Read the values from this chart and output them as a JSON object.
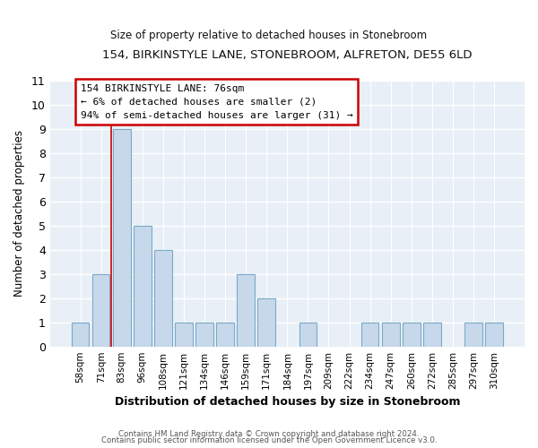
{
  "title": "154, BIRKINSTYLE LANE, STONEBROOM, ALFRETON, DE55 6LD",
  "subtitle": "Size of property relative to detached houses in Stonebroom",
  "xlabel": "Distribution of detached houses by size in Stonebroom",
  "ylabel": "Number of detached properties",
  "categories": [
    "58sqm",
    "71sqm",
    "83sqm",
    "96sqm",
    "108sqm",
    "121sqm",
    "134sqm",
    "146sqm",
    "159sqm",
    "171sqm",
    "184sqm",
    "197sqm",
    "209sqm",
    "222sqm",
    "234sqm",
    "247sqm",
    "260sqm",
    "272sqm",
    "285sqm",
    "297sqm",
    "310sqm"
  ],
  "values": [
    1,
    3,
    9,
    5,
    4,
    1,
    1,
    1,
    3,
    2,
    0,
    1,
    0,
    0,
    1,
    1,
    1,
    1,
    0,
    1,
    1
  ],
  "bar_color": "#c8d8eb",
  "bar_edge_color": "#7aaac8",
  "annotation_box_text_line1": "154 BIRKINSTYLE LANE: 76sqm",
  "annotation_box_text_line2": "← 6% of detached houses are smaller (2)",
  "annotation_box_text_line3": "94% of semi-detached houses are larger (31) →",
  "annotation_box_color": "#ffffff",
  "annotation_box_edge_color": "#cc0000",
  "vline_color": "#cc0000",
  "vline_x": 1.5,
  "ylim": [
    0,
    11
  ],
  "yticks": [
    0,
    1,
    2,
    3,
    4,
    5,
    6,
    7,
    8,
    9,
    10,
    11
  ],
  "background_color": "#ffffff",
  "plot_bg_color": "#e8eff7",
  "grid_color": "#ffffff",
  "footer_line1": "Contains HM Land Registry data © Crown copyright and database right 2024.",
  "footer_line2": "Contains public sector information licensed under the Open Government Licence v3.0."
}
